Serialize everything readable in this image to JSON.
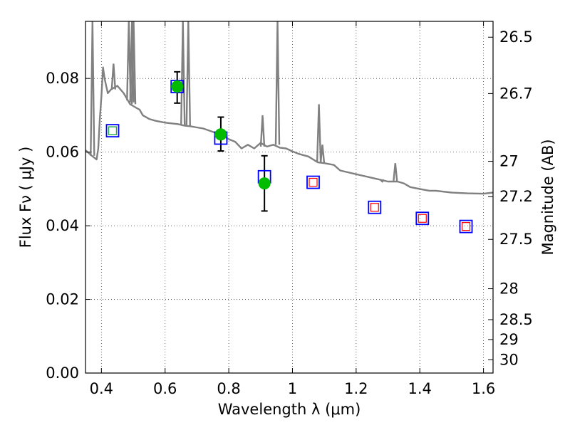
{
  "chart_data": {
    "type": "scatter",
    "xlabel": "Wavelength  λ (μm)",
    "ylabel": "Flux  Fν  ( μJy )",
    "y2label": "Magnitude (AB)",
    "xlim": [
      0.35,
      1.63
    ],
    "ylim": [
      0.0,
      0.0955
    ],
    "grid": true,
    "x_ticks": [
      0.4,
      0.6,
      0.8,
      1.0,
      1.2,
      1.4,
      1.6
    ],
    "x_tick_labels": [
      "0.4",
      "0.6",
      "0.8",
      "1",
      "1.2",
      "1.4",
      "1.6"
    ],
    "y_ticks": [
      0.0,
      0.02,
      0.04,
      0.06,
      0.08
    ],
    "y_tick_labels": [
      "0.00",
      "0.02",
      "0.04",
      "0.06",
      "0.08"
    ],
    "y2_ticks": [
      {
        "label": "26.5",
        "flux": 0.0912
      },
      {
        "label": "26.7",
        "flux": 0.0759
      },
      {
        "label": "27",
        "flux": 0.0575
      },
      {
        "label": "27.2",
        "flux": 0.0479
      },
      {
        "label": "27.5",
        "flux": 0.0363
      },
      {
        "label": "28",
        "flux": 0.0229
      },
      {
        "label": "28.5",
        "flux": 0.0145
      },
      {
        "label": "29",
        "flux": 0.0091
      },
      {
        "label": "30",
        "flux": 0.0036
      }
    ],
    "series": [
      {
        "kind": "model_spectrum",
        "color": "#808080",
        "x": [
          0.35,
          0.37,
          0.385,
          0.39,
          0.395,
          0.4,
          0.405,
          0.41,
          0.415,
          0.42,
          0.43,
          0.45,
          0.47,
          0.49,
          0.51,
          0.52,
          0.53,
          0.55,
          0.57,
          0.6,
          0.62,
          0.64,
          0.66,
          0.68,
          0.7,
          0.72,
          0.75,
          0.78,
          0.8,
          0.82,
          0.84,
          0.86,
          0.88,
          0.9,
          0.92,
          0.94,
          0.96,
          0.98,
          1.0,
          1.02,
          1.05,
          1.08,
          1.1,
          1.13,
          1.15,
          1.2,
          1.25,
          1.3,
          1.33,
          1.35,
          1.37,
          1.4,
          1.43,
          1.45,
          1.5,
          1.55,
          1.6,
          1.63
        ],
        "y": [
          0.0605,
          0.059,
          0.058,
          0.061,
          0.069,
          0.075,
          0.083,
          0.08,
          0.078,
          0.076,
          0.077,
          0.078,
          0.076,
          0.073,
          0.072,
          0.0715,
          0.07,
          0.069,
          0.0685,
          0.068,
          0.0678,
          0.0676,
          0.0672,
          0.067,
          0.0667,
          0.0664,
          0.0655,
          0.0645,
          0.0635,
          0.0628,
          0.061,
          0.062,
          0.061,
          0.0625,
          0.0615,
          0.062,
          0.0612,
          0.061,
          0.0602,
          0.0595,
          0.0588,
          0.0572,
          0.057,
          0.0565,
          0.055,
          0.054,
          0.053,
          0.052,
          0.052,
          0.0515,
          0.0505,
          0.05,
          0.0495,
          0.0495,
          0.049,
          0.0488,
          0.0487,
          0.049
        ]
      },
      {
        "kind": "spectrum_emission_lines",
        "color": "#808080",
        "lines": [
          {
            "x": 0.372,
            "base": 0.059,
            "peak": 0.0955
          },
          {
            "x": 0.438,
            "base": 0.077,
            "peak": 0.084
          },
          {
            "x": 0.486,
            "base": 0.074,
            "peak": 0.0955
          },
          {
            "x": 0.496,
            "base": 0.0735,
            "peak": 0.0955
          },
          {
            "x": 0.501,
            "base": 0.073,
            "peak": 0.0955
          },
          {
            "x": 0.656,
            "base": 0.0672,
            "peak": 0.0955
          },
          {
            "x": 0.673,
            "base": 0.067,
            "peak": 0.0955
          },
          {
            "x": 0.906,
            "base": 0.0615,
            "peak": 0.07
          },
          {
            "x": 0.953,
            "base": 0.062,
            "peak": 0.0955
          },
          {
            "x": 1.083,
            "base": 0.0572,
            "peak": 0.073
          },
          {
            "x": 1.094,
            "base": 0.057,
            "peak": 0.062
          },
          {
            "x": 1.282,
            "base": 0.0525,
            "peak": 0.052
          },
          {
            "x": 1.323,
            "base": 0.052,
            "peak": 0.057
          }
        ]
      },
      {
        "kind": "observed_flux",
        "marker": "circle",
        "color": "#00bb00",
        "points": [
          {
            "x": 0.638,
            "y": 0.0778,
            "err_lo": 0.0733,
            "err_hi": 0.0818
          },
          {
            "x": 0.775,
            "y": 0.0648,
            "err_lo": 0.0603,
            "err_hi": 0.0695
          },
          {
            "x": 0.912,
            "y": 0.0515,
            "err_lo": 0.044,
            "err_hi": 0.059
          }
        ]
      },
      {
        "kind": "model_photometry",
        "marker": "square",
        "color": "#0000ff",
        "points": [
          {
            "x": 0.435,
            "y": 0.0658
          },
          {
            "x": 0.638,
            "y": 0.0778
          },
          {
            "x": 0.775,
            "y": 0.0638
          },
          {
            "x": 0.912,
            "y": 0.0533
          },
          {
            "x": 1.065,
            "y": 0.0518
          },
          {
            "x": 1.258,
            "y": 0.045
          },
          {
            "x": 1.408,
            "y": 0.042
          },
          {
            "x": 1.545,
            "y": 0.0398
          }
        ]
      },
      {
        "kind": "inner_markers_green",
        "marker": "square",
        "color": "#22aa44",
        "points": [
          {
            "x": 0.435,
            "y": 0.0658
          }
        ]
      },
      {
        "kind": "inner_markers_red",
        "marker": "square",
        "color": "#ff0000",
        "points": [
          {
            "x": 1.065,
            "y": 0.0518
          },
          {
            "x": 1.258,
            "y": 0.045
          },
          {
            "x": 1.408,
            "y": 0.042
          },
          {
            "x": 1.545,
            "y": 0.0398
          }
        ]
      }
    ]
  }
}
